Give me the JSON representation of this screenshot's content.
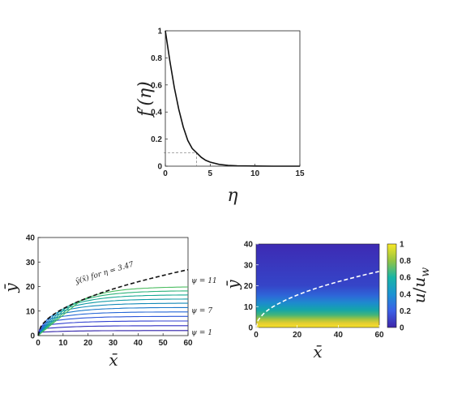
{
  "chart_data": [
    {
      "id": "fprime",
      "type": "line",
      "xlabel": "η",
      "ylabel": "f′(η)",
      "xlim": [
        0,
        15
      ],
      "ylim": [
        0,
        1
      ],
      "xticks": [
        "0",
        "5",
        "10",
        "15"
      ],
      "yticks": [
        "0",
        "0.2",
        "0.4",
        "0.6",
        "0.8",
        "1"
      ],
      "xtick_values": [
        0,
        5,
        10,
        15
      ],
      "ytick_values": [
        0,
        0.2,
        0.4,
        0.6,
        0.8,
        1
      ],
      "series": [
        {
          "x": [
            0,
            0.5,
            1,
            1.5,
            2,
            2.5,
            3,
            3.47,
            4,
            4.5,
            5,
            6,
            7,
            8,
            10,
            12,
            15
          ],
          "y": [
            1.0,
            0.78,
            0.58,
            0.42,
            0.29,
            0.19,
            0.13,
            0.1,
            0.065,
            0.043,
            0.03,
            0.013,
            0.006,
            0.003,
            0.001,
            0.0,
            0.0
          ]
        }
      ],
      "reference": {
        "x": 3.47,
        "y": 0.1
      }
    },
    {
      "id": "streamlines",
      "type": "line",
      "xlabel": "x̄",
      "ylabel": "ȳ",
      "xlim": [
        0,
        60
      ],
      "ylim": [
        0,
        40
      ],
      "xticks": [
        "0",
        "10",
        "20",
        "30",
        "40",
        "50",
        "60"
      ],
      "yticks": [
        "0",
        "10",
        "20",
        "30",
        "40"
      ],
      "xtick_values": [
        0,
        10,
        20,
        30,
        40,
        50,
        60
      ],
      "ytick_values": [
        0,
        10,
        20,
        30,
        40
      ],
      "boundary": {
        "label": "ȳ(x̄) for η = 3.47",
        "x": [
          0,
          1,
          2,
          4,
          6,
          8,
          10,
          15,
          20,
          25,
          30,
          35,
          40,
          45,
          50,
          55,
          60
        ],
        "y": [
          0,
          3.47,
          4.91,
          6.94,
          8.5,
          9.81,
          10.97,
          13.44,
          15.52,
          17.35,
          19.01,
          20.53,
          21.95,
          23.28,
          24.54,
          25.74,
          26.88
        ]
      },
      "streamline_levels": [
        1,
        2,
        3,
        4,
        5,
        6,
        7,
        8,
        9,
        10,
        11
      ],
      "labels": [
        "ψ = 1",
        "ψ = 7",
        "ψ = 11"
      ],
      "colors": [
        "#2d1ea8",
        "#2f2cc0",
        "#2f3fd0",
        "#2c55d8",
        "#2466d6",
        "#1a78c9",
        "#1289b8",
        "#0f99a5",
        "#14a792",
        "#2db37a",
        "#4dbd62"
      ]
    },
    {
      "id": "velocity",
      "type": "heatmap",
      "xlabel": "x̄",
      "ylabel": "ȳ",
      "xlim": [
        0,
        60
      ],
      "ylim": [
        0,
        40
      ],
      "xticks": [
        "0",
        "20",
        "40",
        "60"
      ],
      "yticks": [
        "0",
        "10",
        "20",
        "30",
        "40"
      ],
      "xtick_values": [
        0,
        20,
        40,
        60
      ],
      "ytick_values": [
        0,
        10,
        20,
        30,
        40
      ],
      "colorbar": {
        "label": "u/u_w",
        "range": [
          0,
          1
        ],
        "ticks": [
          "0",
          "0.2",
          "0.4",
          "0.6",
          "0.8",
          "1"
        ],
        "tick_values": [
          0,
          0.2,
          0.4,
          0.6,
          0.8,
          1
        ]
      },
      "overlay": "ȳ(x̄) for η = 3.47"
    }
  ]
}
